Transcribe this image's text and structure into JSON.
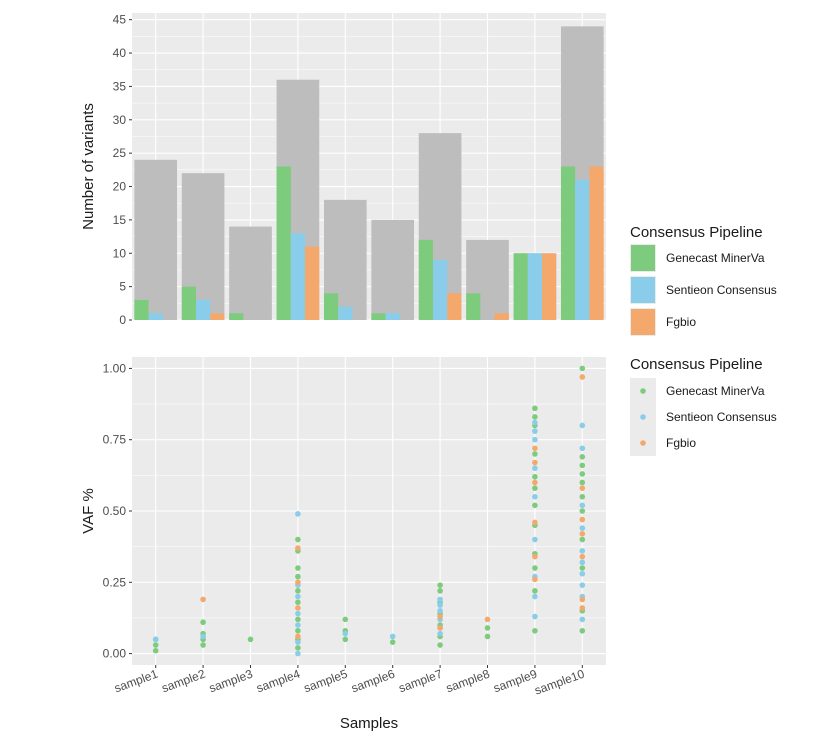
{
  "colors": {
    "panel_bg": "#ebebeb",
    "grid": "#ffffff",
    "total_bar": "#bdbdbd",
    "genecast": "#7dcc7d",
    "sentieon": "#89cdea",
    "fgbio": "#f4a86c"
  },
  "chart_data": [
    {
      "type": "bar",
      "title": "",
      "xlabel": "",
      "ylabel": "Number of variants",
      "ylim": [
        0,
        46
      ],
      "yticks": [
        0,
        5,
        10,
        15,
        20,
        25,
        30,
        35,
        40,
        45
      ],
      "grid": true,
      "categories": [
        "sample1",
        "sample2",
        "sample3",
        "sample4",
        "sample5",
        "sample6",
        "sample7",
        "sample8",
        "sample9",
        "sample10"
      ],
      "totals": [
        24,
        22,
        14,
        36,
        18,
        15,
        28,
        12,
        10,
        44
      ],
      "series": [
        {
          "name": "Genecast MinerVa",
          "values": [
            3,
            5,
            1,
            23,
            4,
            1,
            12,
            4,
            10,
            23
          ]
        },
        {
          "name": "Sentieon Consensus",
          "values": [
            1,
            3,
            0,
            13,
            2,
            1,
            9,
            0,
            10,
            21
          ]
        },
        {
          "name": "Fgbio",
          "values": [
            0,
            1,
            0,
            11,
            0,
            0,
            4,
            1,
            10,
            23
          ]
        }
      ],
      "legend": {
        "title": "Consensus Pipeline",
        "position": "right"
      }
    },
    {
      "type": "scatter",
      "title": "",
      "xlabel": "Samples",
      "ylabel": "VAF %",
      "ylim": [
        -0.04,
        1.04
      ],
      "yticks": [
        "0.00",
        "0.25",
        "0.50",
        "0.75",
        "1.00"
      ],
      "grid": true,
      "categories": [
        "sample1",
        "sample2",
        "sample3",
        "sample4",
        "sample5",
        "sample6",
        "sample7",
        "sample8",
        "sample9",
        "sample10"
      ],
      "series": [
        {
          "name": "Genecast MinerVa",
          "points": [
            [
              "sample1",
              0.01
            ],
            [
              "sample1",
              0.03
            ],
            [
              "sample1",
              0.05
            ],
            [
              "sample2",
              0.03
            ],
            [
              "sample2",
              0.05
            ],
            [
              "sample2",
              0.07
            ],
            [
              "sample2",
              0.11
            ],
            [
              "sample3",
              0.05
            ],
            [
              "sample4",
              0.02
            ],
            [
              "sample4",
              0.05
            ],
            [
              "sample4",
              0.08
            ],
            [
              "sample4",
              0.12
            ],
            [
              "sample4",
              0.18
            ],
            [
              "sample4",
              0.22
            ],
            [
              "sample4",
              0.27
            ],
            [
              "sample4",
              0.3
            ],
            [
              "sample4",
              0.36
            ],
            [
              "sample4",
              0.4
            ],
            [
              "sample5",
              0.05
            ],
            [
              "sample5",
              0.08
            ],
            [
              "sample5",
              0.12
            ],
            [
              "sample6",
              0.04
            ],
            [
              "sample7",
              0.03
            ],
            [
              "sample7",
              0.06
            ],
            [
              "sample7",
              0.1
            ],
            [
              "sample7",
              0.14
            ],
            [
              "sample7",
              0.18
            ],
            [
              "sample7",
              0.22
            ],
            [
              "sample7",
              0.24
            ],
            [
              "sample8",
              0.06
            ],
            [
              "sample8",
              0.09
            ],
            [
              "sample9",
              0.08
            ],
            [
              "sample9",
              0.22
            ],
            [
              "sample9",
              0.3
            ],
            [
              "sample9",
              0.35
            ],
            [
              "sample9",
              0.45
            ],
            [
              "sample9",
              0.52
            ],
            [
              "sample9",
              0.58
            ],
            [
              "sample9",
              0.62
            ],
            [
              "sample9",
              0.7
            ],
            [
              "sample9",
              0.8
            ],
            [
              "sample9",
              0.83
            ],
            [
              "sample9",
              0.86
            ],
            [
              "sample10",
              0.08
            ],
            [
              "sample10",
              0.15
            ],
            [
              "sample10",
              0.3
            ],
            [
              "sample10",
              0.4
            ],
            [
              "sample10",
              0.5
            ],
            [
              "sample10",
              0.55
            ],
            [
              "sample10",
              0.6
            ],
            [
              "sample10",
              0.63
            ],
            [
              "sample10",
              0.66
            ],
            [
              "sample10",
              0.69
            ],
            [
              "sample10",
              1.0
            ]
          ]
        },
        {
          "name": "Sentieon Consensus",
          "points": [
            [
              "sample1",
              0.05
            ],
            [
              "sample2",
              0.06
            ],
            [
              "sample4",
              0.0
            ],
            [
              "sample4",
              0.04
            ],
            [
              "sample4",
              0.1
            ],
            [
              "sample4",
              0.14
            ],
            [
              "sample4",
              0.2
            ],
            [
              "sample4",
              0.24
            ],
            [
              "sample4",
              0.49
            ],
            [
              "sample5",
              0.07
            ],
            [
              "sample6",
              0.06
            ],
            [
              "sample7",
              0.07
            ],
            [
              "sample7",
              0.09
            ],
            [
              "sample7",
              0.12
            ],
            [
              "sample7",
              0.15
            ],
            [
              "sample7",
              0.17
            ],
            [
              "sample7",
              0.19
            ],
            [
              "sample9",
              0.13
            ],
            [
              "sample9",
              0.2
            ],
            [
              "sample9",
              0.27
            ],
            [
              "sample9",
              0.4
            ],
            [
              "sample9",
              0.55
            ],
            [
              "sample9",
              0.65
            ],
            [
              "sample9",
              0.75
            ],
            [
              "sample9",
              0.78
            ],
            [
              "sample9",
              0.81
            ],
            [
              "sample10",
              0.12
            ],
            [
              "sample10",
              0.2
            ],
            [
              "sample10",
              0.24
            ],
            [
              "sample10",
              0.28
            ],
            [
              "sample10",
              0.32
            ],
            [
              "sample10",
              0.36
            ],
            [
              "sample10",
              0.44
            ],
            [
              "sample10",
              0.52
            ],
            [
              "sample10",
              0.72
            ],
            [
              "sample10",
              0.8
            ]
          ]
        },
        {
          "name": "Fgbio",
          "points": [
            [
              "sample2",
              0.19
            ],
            [
              "sample4",
              0.06
            ],
            [
              "sample4",
              0.16
            ],
            [
              "sample4",
              0.25
            ],
            [
              "sample4",
              0.37
            ],
            [
              "sample7",
              0.09
            ],
            [
              "sample7",
              0.13
            ],
            [
              "sample8",
              0.12
            ],
            [
              "sample9",
              0.26
            ],
            [
              "sample9",
              0.34
            ],
            [
              "sample9",
              0.46
            ],
            [
              "sample9",
              0.6
            ],
            [
              "sample9",
              0.67
            ],
            [
              "sample9",
              0.72
            ],
            [
              "sample10",
              0.16
            ],
            [
              "sample10",
              0.19
            ],
            [
              "sample10",
              0.34
            ],
            [
              "sample10",
              0.42
            ],
            [
              "sample10",
              0.47
            ],
            [
              "sample10",
              0.58
            ],
            [
              "sample10",
              0.97
            ]
          ]
        }
      ],
      "legend": {
        "title": "Consensus Pipeline",
        "position": "right"
      }
    }
  ]
}
